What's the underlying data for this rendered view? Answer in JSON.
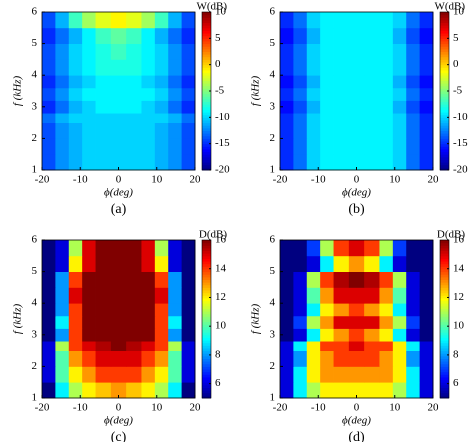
{
  "chart_data": [
    {
      "type": "heatmap",
      "caption": "(a)",
      "colorbar_label": "W(dB)",
      "xlabel": "ϕ(deg)",
      "ylabel": "f (kHz)",
      "colormap": "jet",
      "xlim": [
        -20,
        20
      ],
      "ylim": [
        1,
        6
      ],
      "xticks": [
        -20,
        -10,
        0,
        10,
        20
      ],
      "yticks": [
        1,
        2,
        3,
        4,
        5,
        6
      ],
      "zlim": [
        -20,
        10
      ],
      "zticks": [
        10,
        5,
        0,
        -5,
        -10,
        -15,
        -20
      ],
      "xbins": [
        -20,
        -16.5,
        -13,
        -9.5,
        -6,
        -2,
        2,
        6,
        9.5,
        13,
        16.5,
        20
      ],
      "ybins": [
        1,
        1.5,
        2,
        2.5,
        2.8,
        3.2,
        3.6,
        4,
        4.5,
        5,
        5.5,
        6
      ],
      "values": [
        [
          -14,
          -12,
          -11,
          -10,
          -10,
          -10,
          -10,
          -10,
          -11,
          -12,
          -14
        ],
        [
          -14,
          -12,
          -11,
          -10,
          -10,
          -10,
          -10,
          -10,
          -11,
          -12,
          -14
        ],
        [
          -14,
          -12,
          -11,
          -10,
          -10,
          -10,
          -10,
          -10,
          -11,
          -12,
          -14
        ],
        [
          -13,
          -11,
          -10,
          -10,
          -10,
          -10,
          -10,
          -10,
          -10,
          -11,
          -13
        ],
        [
          -15,
          -13,
          -11,
          -10,
          -9,
          -9,
          -9,
          -10,
          -11,
          -13,
          -15
        ],
        [
          -14,
          -12,
          -10,
          -9,
          -9,
          -9,
          -9,
          -9,
          -10,
          -12,
          -14
        ],
        [
          -15,
          -13,
          -11,
          -10,
          -9,
          -9,
          -9,
          -10,
          -11,
          -13,
          -15
        ],
        [
          -14,
          -12,
          -10,
          -9,
          -8,
          -8,
          -8,
          -9,
          -10,
          -12,
          -14
        ],
        [
          -14,
          -12,
          -10,
          -9,
          -8,
          -7,
          -8,
          -9,
          -10,
          -12,
          -14
        ],
        [
          -15,
          -13,
          -11,
          -9,
          -7,
          -6,
          -7,
          -9,
          -11,
          -13,
          -15
        ],
        [
          -14,
          -11,
          -7,
          -4,
          -2,
          -1,
          -2,
          -4,
          -7,
          -11,
          -14
        ]
      ]
    },
    {
      "type": "heatmap",
      "caption": "(b)",
      "colorbar_label": "W(dB)",
      "xlabel": "ϕ(deg)",
      "ylabel": "f (kHz)",
      "colormap": "jet",
      "xlim": [
        -20,
        20
      ],
      "ylim": [
        1,
        6
      ],
      "xticks": [
        -20,
        -10,
        0,
        10,
        20
      ],
      "yticks": [
        1,
        2,
        3,
        4,
        5,
        6
      ],
      "zlim": [
        -20,
        10
      ],
      "zticks": [
        10,
        5,
        0,
        -5,
        -10,
        -15,
        -20
      ],
      "xbins": [
        -20,
        -16.5,
        -13,
        -9.5,
        -6,
        -2,
        2,
        6,
        9.5,
        13,
        16.5,
        20
      ],
      "ybins": [
        1,
        1.5,
        2,
        2.5,
        2.8,
        3.2,
        3.6,
        4,
        4.5,
        5,
        5.5,
        6
      ],
      "values": [
        [
          -15,
          -13,
          -10,
          -9,
          -9,
          -9,
          -9,
          -9,
          -10,
          -13,
          -15
        ],
        [
          -15,
          -13,
          -10,
          -9,
          -9,
          -9,
          -9,
          -9,
          -10,
          -13,
          -15
        ],
        [
          -15,
          -13,
          -10,
          -9,
          -9,
          -9,
          -9,
          -9,
          -10,
          -13,
          -15
        ],
        [
          -15,
          -13,
          -10,
          -9,
          -9,
          -9,
          -9,
          -9,
          -10,
          -13,
          -15
        ],
        [
          -16,
          -14,
          -11,
          -9,
          -9,
          -9,
          -9,
          -9,
          -11,
          -14,
          -16
        ],
        [
          -15,
          -13,
          -10,
          -9,
          -9,
          -9,
          -9,
          -9,
          -10,
          -13,
          -15
        ],
        [
          -16,
          -14,
          -11,
          -9,
          -9,
          -9,
          -9,
          -9,
          -11,
          -14,
          -16
        ],
        [
          -15,
          -13,
          -10,
          -9,
          -9,
          -9,
          -9,
          -9,
          -10,
          -13,
          -15
        ],
        [
          -15,
          -13,
          -10,
          -9,
          -9,
          -9,
          -9,
          -9,
          -10,
          -13,
          -15
        ],
        [
          -16,
          -14,
          -11,
          -9,
          -9,
          -9,
          -9,
          -9,
          -11,
          -14,
          -16
        ],
        [
          -15,
          -13,
          -10,
          -9,
          -9,
          -9,
          -9,
          -9,
          -10,
          -13,
          -15
        ]
      ]
    },
    {
      "type": "heatmap",
      "caption": "(c)",
      "colorbar_label": "D(dB)",
      "xlabel": "ϕ(deg)",
      "ylabel": "f (kHz)",
      "colormap": "jet",
      "xlim": [
        -20,
        20
      ],
      "ylim": [
        1,
        6
      ],
      "xticks": [
        -20,
        -10,
        0,
        10,
        20
      ],
      "yticks": [
        1,
        2,
        3,
        4,
        5,
        6
      ],
      "zlim": [
        5,
        16
      ],
      "zticks": [
        16,
        14,
        12,
        10,
        8,
        6
      ],
      "xbins": [
        -20,
        -16.5,
        -13,
        -9.5,
        -6,
        -2,
        2,
        6,
        9.5,
        13,
        16.5,
        20
      ],
      "ybins": [
        1,
        1.5,
        2,
        2.5,
        2.8,
        3.2,
        3.6,
        4,
        4.5,
        5,
        5.5,
        6
      ],
      "values": [
        [
          5,
          9,
          11,
          12,
          12.5,
          13,
          12.5,
          12,
          11,
          9,
          5
        ],
        [
          6,
          10,
          12,
          13,
          14,
          14,
          14,
          13,
          12,
          10,
          6
        ],
        [
          6,
          10,
          13,
          14,
          15,
          15,
          15,
          14,
          13,
          10,
          6
        ],
        [
          6,
          11,
          14,
          15,
          15.5,
          16,
          15.5,
          15,
          14,
          11,
          6
        ],
        [
          5,
          8,
          14,
          16,
          16,
          16,
          16,
          16,
          14,
          8,
          5
        ],
        [
          5,
          9,
          14,
          16,
          16,
          16,
          16,
          16,
          14,
          9,
          5
        ],
        [
          5,
          8,
          14,
          16,
          16,
          16,
          16,
          16,
          14,
          8,
          5
        ],
        [
          5,
          8,
          15,
          16,
          16,
          16,
          16,
          16,
          15,
          8,
          5
        ],
        [
          5,
          8,
          14,
          16,
          16,
          16,
          16,
          16,
          14,
          8,
          5
        ],
        [
          5,
          6,
          12,
          15,
          16,
          16,
          16,
          15,
          12,
          6,
          5
        ],
        [
          5,
          6,
          11,
          15,
          16,
          16,
          16,
          15,
          11,
          6,
          5
        ]
      ]
    },
    {
      "type": "heatmap",
      "caption": "(d)",
      "colorbar_label": "D(dB)",
      "xlabel": "ϕ(deg)",
      "ylabel": "f (kHz)",
      "colormap": "jet",
      "xlim": [
        -20,
        20
      ],
      "ylim": [
        1,
        6
      ],
      "xticks": [
        -20,
        -10,
        0,
        10,
        20
      ],
      "yticks": [
        1,
        2,
        3,
        4,
        5,
        6
      ],
      "zlim": [
        5,
        16
      ],
      "zticks": [
        16,
        14,
        12,
        10,
        8,
        6
      ],
      "xbins": [
        -20,
        -16.5,
        -13,
        -9.5,
        -6,
        -2,
        2,
        6,
        9.5,
        13,
        16.5,
        20
      ],
      "ybins": [
        1,
        1.5,
        2,
        2.5,
        2.8,
        3.2,
        3.6,
        4,
        4.5,
        5,
        5.5,
        6
      ],
      "values": [
        [
          6,
          9,
          11,
          12,
          12,
          12,
          12,
          12,
          11,
          9,
          6
        ],
        [
          6,
          9,
          12,
          13,
          13,
          13,
          13,
          13,
          12,
          9,
          6
        ],
        [
          6,
          8,
          12,
          13,
          14,
          14,
          14,
          13,
          12,
          8,
          6
        ],
        [
          6,
          9,
          12,
          14,
          14,
          15,
          14,
          14,
          12,
          9,
          6
        ],
        [
          5,
          6,
          9,
          12,
          13,
          14,
          13,
          12,
          9,
          6,
          5
        ],
        [
          5,
          7,
          11,
          13,
          15,
          15,
          15,
          13,
          11,
          7,
          5
        ],
        [
          5,
          6,
          9,
          12,
          13,
          14,
          13,
          12,
          9,
          6,
          5
        ],
        [
          5,
          6,
          10,
          13,
          15,
          15,
          15,
          13,
          10,
          6,
          5
        ],
        [
          5,
          6,
          11,
          14,
          15.5,
          16,
          15.5,
          14,
          11,
          6,
          5
        ],
        [
          5,
          5,
          6,
          9,
          12,
          13,
          12,
          9,
          6,
          5,
          5
        ],
        [
          5,
          5,
          7,
          11,
          14,
          15,
          14,
          11,
          7,
          5,
          5
        ]
      ]
    }
  ]
}
